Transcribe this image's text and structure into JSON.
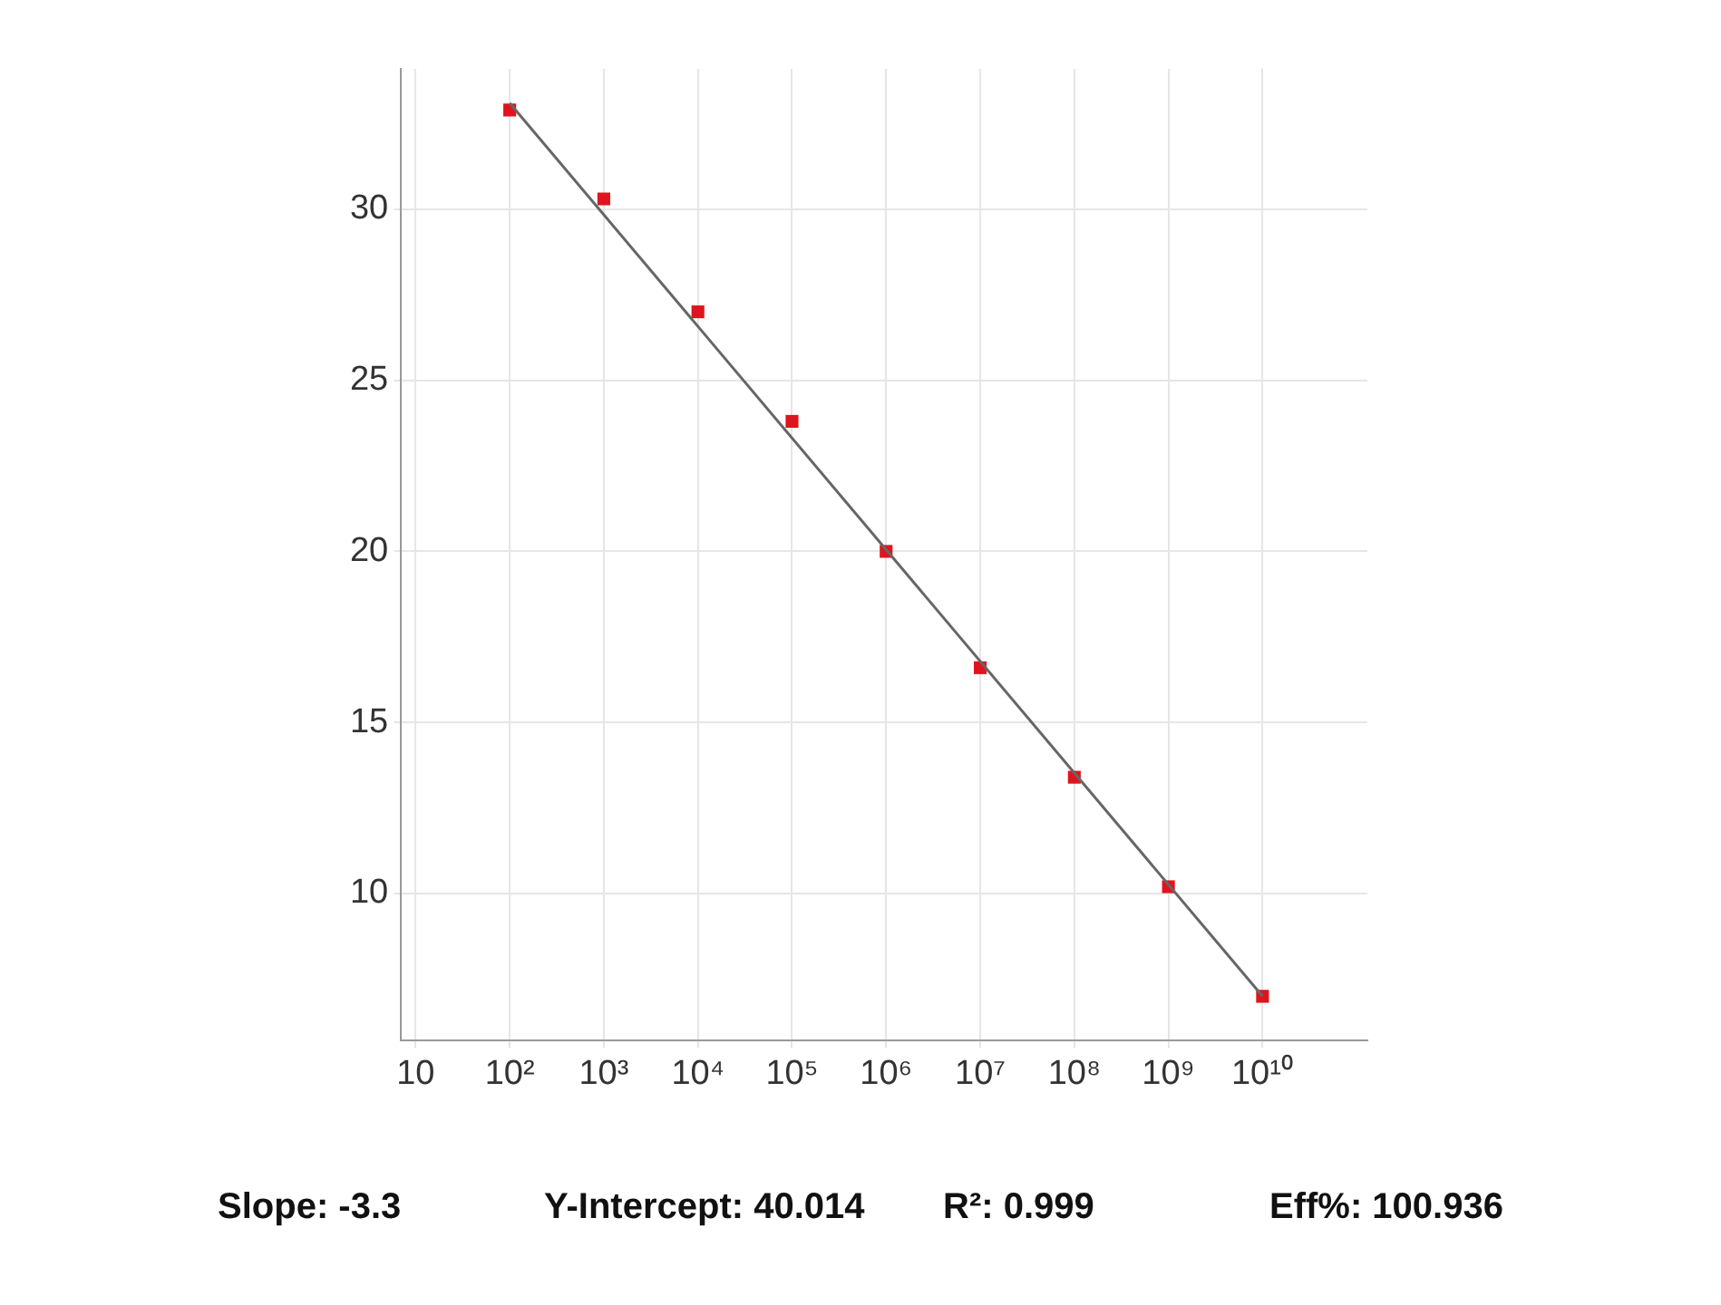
{
  "chart_data": {
    "type": "scatter",
    "log": "x",
    "grid": true,
    "marker": "square",
    "xlim": [
      7,
      130000000000
    ],
    "ylim": [
      5.7,
      34.1
    ],
    "xticks": [
      10,
      {
        "value": 100,
        "label": "10²"
      },
      {
        "value": 1000,
        "label": "10³"
      },
      {
        "value": 10000,
        "label": "10⁴"
      },
      {
        "value": 100000,
        "label": "10⁵"
      },
      {
        "value": 1000000,
        "label": "10⁶"
      },
      {
        "value": 10000000,
        "label": "10⁷"
      },
      {
        "value": 100000000,
        "label": "10⁸"
      },
      {
        "value": 1000000000,
        "label": "10⁹"
      },
      {
        "value": 10000000000,
        "label": "10¹⁰"
      }
    ],
    "yticks": [
      10,
      15,
      20,
      25,
      30
    ],
    "x": [
      100,
      1000,
      10000,
      100000,
      1000000,
      10000000,
      100000000,
      1000000000,
      10000000000
    ],
    "series": [
      {
        "type": "line",
        "color": "#666666",
        "marker": "none",
        "x": [
          100,
          10000000000
        ],
        "values": [
          33.1,
          7.0
        ]
      },
      {
        "type": "scatter",
        "color": "#e0141e",
        "values": [
          32.9,
          30.3,
          27.0,
          23.8,
          20.0,
          16.6,
          13.4,
          10.2,
          7.0
        ]
      }
    ],
    "annotations": [
      "Slope: -3.3",
      "Y-Intercept: 40.014",
      "R²: 0.999",
      "Eff%: 100.936"
    ]
  }
}
